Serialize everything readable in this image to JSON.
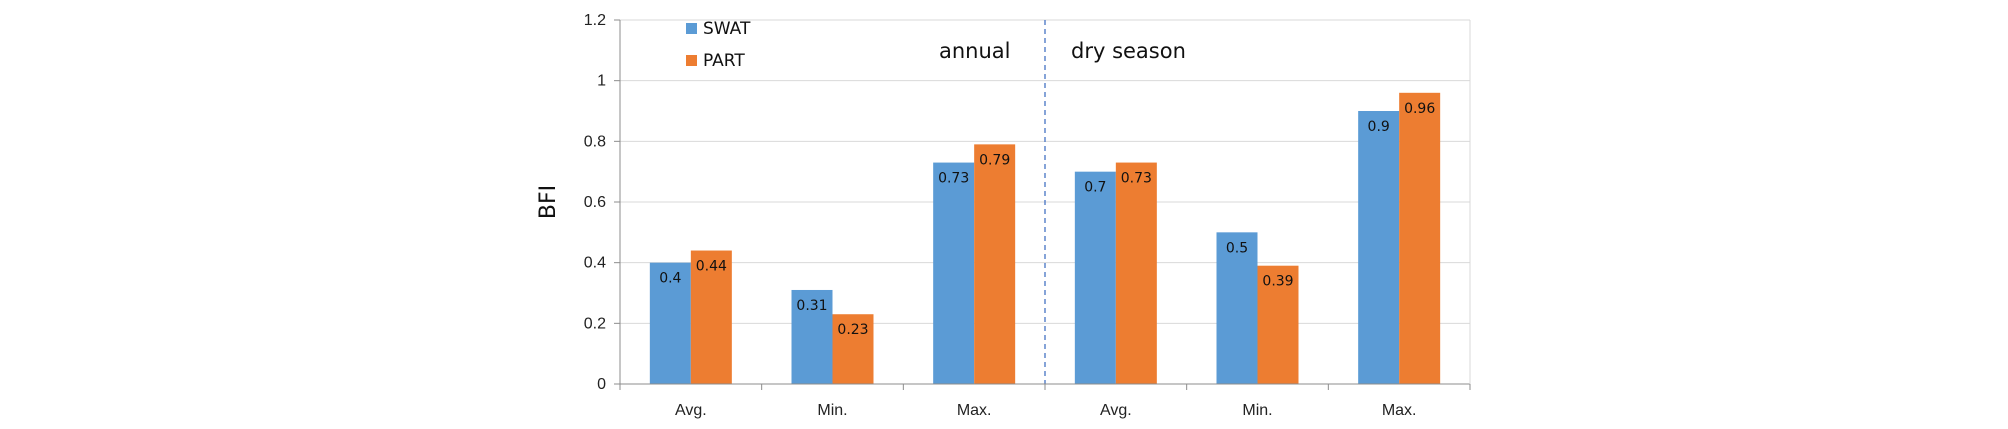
{
  "chart_data": {
    "type": "bar",
    "categories": [
      "Avg.",
      "Min.",
      "Max.",
      "Avg.",
      "Min.",
      "Max."
    ],
    "series": [
      {
        "name": "SWAT",
        "values": [
          0.4,
          0.31,
          0.73,
          0.7,
          0.5,
          0.9
        ]
      },
      {
        "name": "PART",
        "values": [
          0.44,
          0.23,
          0.79,
          0.73,
          0.39,
          0.96
        ]
      }
    ],
    "data_labels": [
      [
        "0.4",
        "0.31",
        "0.73",
        "0.7",
        "0.5",
        "0.9"
      ],
      [
        "0.44",
        "0.23",
        "0.79",
        "0.73",
        "0.39",
        "0.96"
      ]
    ],
    "title": "",
    "xlabel": "",
    "ylabel": "BFI",
    "ylim": [
      0,
      1.2
    ],
    "yticks": [
      "0",
      "0.2",
      "0.4",
      "0.6",
      "0.8",
      "1",
      "1.2"
    ],
    "grid": true,
    "legend_position": "top-left",
    "annotations": [
      {
        "text": "annual"
      },
      {
        "text": "dry season"
      }
    ],
    "divider_after_category": 3,
    "colors": {
      "SWAT": "#5b9bd5",
      "PART": "#ed7d31",
      "grid": "#d9d9d9",
      "axis": "#8c8c8c",
      "divider": "#4472c4"
    }
  }
}
